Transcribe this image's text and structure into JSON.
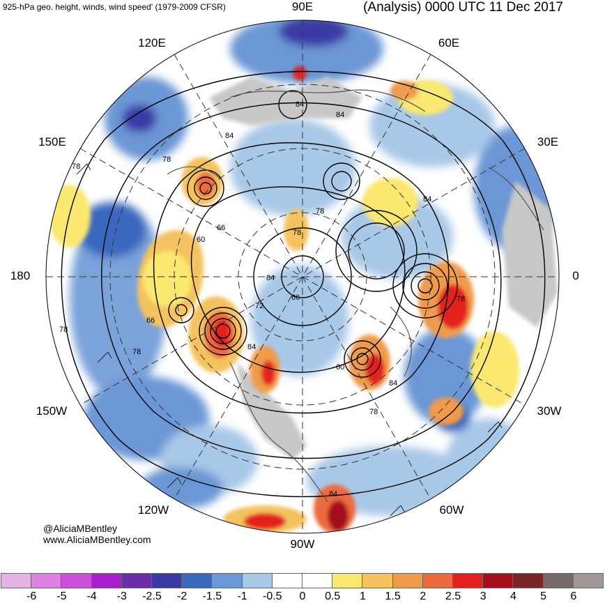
{
  "header": {
    "left_title": "925-hPa geo. height, winds, wind speed' (1979-2009 CFSR)",
    "right_title": "(Analysis) 0000 UTC 11 Dec 2017"
  },
  "longitude_labels": {
    "e90": "90E",
    "e60": "60E",
    "e30": "30E",
    "zero": "0",
    "w30": "30W",
    "w60": "60W",
    "w90": "90W",
    "w120": "120W",
    "w150": "150W",
    "dateline": "180",
    "e150": "150E",
    "e120": "120E"
  },
  "contour_labels": {
    "l1": "84",
    "l2": "84",
    "l3": "84",
    "l4": "78",
    "l5": "78",
    "l6": "66",
    "l7": "60",
    "l8": "78",
    "l9": "84",
    "l10": "66",
    "l11": "72",
    "l12": "84",
    "l13": "78",
    "l14": "78",
    "l15": "84",
    "l16": "60",
    "l17": "84",
    "l18": "78",
    "l19": "66",
    "l20": "78",
    "l21": "78",
    "l22": "84"
  },
  "credit": {
    "handle": "@AliciaMBentley",
    "site": "www.AliciaMBentley.com"
  },
  "colorbar": {
    "colors": [
      "#e6b3e6",
      "#e07fe6",
      "#cc4fd9",
      "#a81fcc",
      "#6b2fa8",
      "#3b3aa6",
      "#3a68bf",
      "#6c97d6",
      "#a8c8e8",
      "#ffffff",
      "#ffffff",
      "#fbe870",
      "#f4c35e",
      "#ef9b4c",
      "#ec6a3d",
      "#e3221f",
      "#a50f1b",
      "#7a2626",
      "#786a6a",
      "#a19696"
    ],
    "ticks": [
      "-6",
      "-5",
      "-4",
      "-3",
      "-2.5",
      "-2",
      "-1.5",
      "-1",
      "-0.5",
      "0",
      "0.5",
      "1",
      "1.5",
      "2",
      "2.5",
      "3",
      "4",
      "5",
      "6"
    ]
  }
}
